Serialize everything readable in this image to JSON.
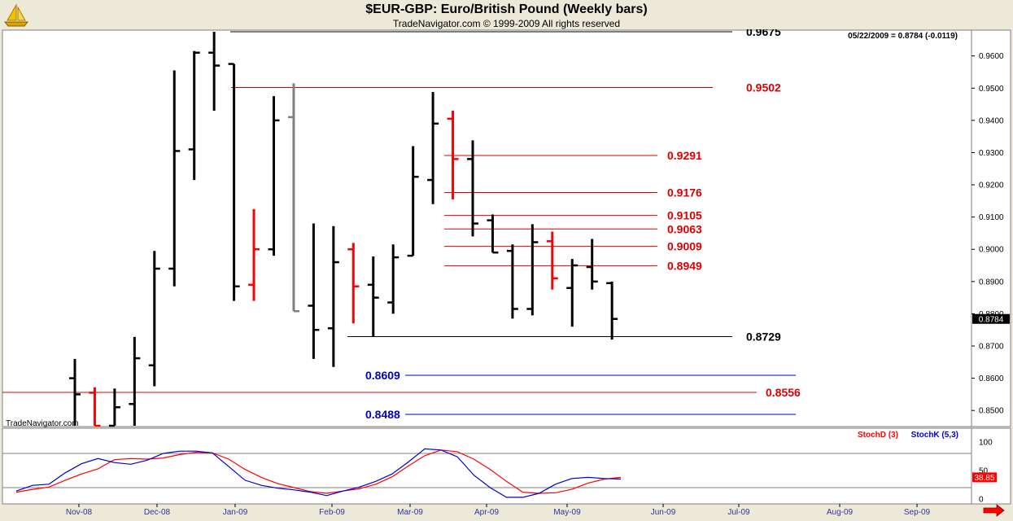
{
  "header": {
    "title": "$EUR-GBP:  Euro/British Pound  (Weekly bars)",
    "subtitle": "TradeNavigator.com © 1999-2009 All rights reserved",
    "last_quote": "05/22/2009 = 0.8784 (-0.0119)",
    "watermark": "TradeNavigator.com",
    "logo_icon": "trade-navigator-sailboat-icon"
  },
  "colors": {
    "background": "#ffffff",
    "frame": "#ece9d8",
    "up_bar": "#000000",
    "down_bar": "#ff0000",
    "neutral_bar": "#808080",
    "stoch_d": "#ff0000",
    "stoch_k": "#0000cc",
    "level_red": "#dd0000",
    "level_blue": "#0000cc",
    "level_black": "#000000"
  },
  "chart_data": [
    {
      "type": "ohlc",
      "title": "$EUR-GBP:  Euro/British Pound  (Weekly bars)",
      "ylim": [
        0.845,
        0.968
      ],
      "yticks": [
        "0.9600",
        "0.9500",
        "0.9400",
        "0.9300",
        "0.9200",
        "0.9100",
        "0.9000",
        "0.8900",
        "0.8800",
        "0.8700",
        "0.8600",
        "0.8500"
      ],
      "x_labels": [
        "Nov-08",
        "Dec-08",
        "Jan-09",
        "Feb-09",
        "Mar-09",
        "Apr-09",
        "May-09",
        "Jun-09",
        "Jul-09",
        "Aug-09",
        "Sep-09"
      ],
      "last_price_label": "0.8784",
      "bars": [
        {
          "week": 1,
          "o": 0.86,
          "h": 0.866,
          "l": 0.845,
          "c": 0.855,
          "color": "black"
        },
        {
          "week": 2,
          "o": 0.8555,
          "h": 0.8572,
          "l": 0.845,
          "c": 0.845,
          "color": "red"
        },
        {
          "week": 3,
          "o": 0.845,
          "h": 0.8568,
          "l": 0.845,
          "c": 0.851,
          "color": "black"
        },
        {
          "week": 4,
          "o": 0.852,
          "h": 0.8728,
          "l": 0.845,
          "c": 0.8662,
          "color": "black"
        },
        {
          "week": 5,
          "o": 0.864,
          "h": 0.8995,
          "l": 0.8575,
          "c": 0.894,
          "color": "black"
        },
        {
          "week": 6,
          "o": 0.894,
          "h": 0.9555,
          "l": 0.8885,
          "c": 0.9305,
          "color": "black"
        },
        {
          "week": 7,
          "o": 0.931,
          "h": 0.9615,
          "l": 0.9215,
          "c": 0.961,
          "color": "black"
        },
        {
          "week": 8,
          "o": 0.961,
          "h": 0.9675,
          "l": 0.943,
          "c": 0.957,
          "color": "black"
        },
        {
          "week": 9,
          "o": 0.9575,
          "h": 0.9575,
          "l": 0.884,
          "c": 0.8885,
          "color": "black"
        },
        {
          "week": 10,
          "o": 0.889,
          "h": 0.9125,
          "l": 0.884,
          "c": 0.9,
          "color": "red"
        },
        {
          "week": 11,
          "o": 0.9,
          "h": 0.9475,
          "l": 0.898,
          "c": 0.94,
          "color": "black"
        },
        {
          "week": 12,
          "o": 0.941,
          "h": 0.9515,
          "l": 0.8808,
          "c": 0.8808,
          "color": "gray"
        },
        {
          "week": 13,
          "o": 0.8825,
          "h": 0.908,
          "l": 0.866,
          "c": 0.875,
          "color": "black"
        },
        {
          "week": 14,
          "o": 0.8755,
          "h": 0.9072,
          "l": 0.8635,
          "c": 0.896,
          "color": "black"
        },
        {
          "week": 15,
          "o": 0.9,
          "h": 0.902,
          "l": 0.877,
          "c": 0.8885,
          "color": "red"
        },
        {
          "week": 16,
          "o": 0.889,
          "h": 0.8978,
          "l": 0.8729,
          "c": 0.885,
          "color": "black"
        },
        {
          "week": 17,
          "o": 0.8835,
          "h": 0.9015,
          "l": 0.88,
          "c": 0.8975,
          "color": "black"
        },
        {
          "week": 18,
          "o": 0.898,
          "h": 0.932,
          "l": 0.898,
          "c": 0.9225,
          "color": "black"
        },
        {
          "week": 19,
          "o": 0.9215,
          "h": 0.9488,
          "l": 0.914,
          "c": 0.939,
          "color": "black"
        },
        {
          "week": 20,
          "o": 0.9405,
          "h": 0.943,
          "l": 0.9155,
          "c": 0.928,
          "color": "red"
        },
        {
          "week": 21,
          "o": 0.928,
          "h": 0.9338,
          "l": 0.904,
          "c": 0.908,
          "color": "black"
        },
        {
          "week": 22,
          "o": 0.909,
          "h": 0.9108,
          "l": 0.899,
          "c": 0.899,
          "color": "black"
        },
        {
          "week": 23,
          "o": 0.8995,
          "h": 0.9015,
          "l": 0.8785,
          "c": 0.8815,
          "color": "black"
        },
        {
          "week": 24,
          "o": 0.8815,
          "h": 0.9078,
          "l": 0.8795,
          "c": 0.9022,
          "color": "black"
        },
        {
          "week": 25,
          "o": 0.9025,
          "h": 0.9055,
          "l": 0.8875,
          "c": 0.891,
          "color": "red"
        },
        {
          "week": 26,
          "o": 0.888,
          "h": 0.897,
          "l": 0.876,
          "c": 0.895,
          "color": "black"
        },
        {
          "week": 27,
          "o": 0.8945,
          "h": 0.9032,
          "l": 0.8875,
          "c": 0.89,
          "color": "black"
        },
        {
          "week": 28,
          "o": 0.8895,
          "h": 0.89,
          "l": 0.872,
          "c": 0.8784,
          "color": "black"
        }
      ],
      "levels": [
        {
          "value": 0.9675,
          "label": "0.9675",
          "color": "black"
        },
        {
          "value": 0.9502,
          "label": "0.9502",
          "color": "red"
        },
        {
          "value": 0.9291,
          "label": "0.9291",
          "color": "red"
        },
        {
          "value": 0.9176,
          "label": "0.9176",
          "color": "red"
        },
        {
          "value": 0.9105,
          "label": "0.9105",
          "color": "red"
        },
        {
          "value": 0.9063,
          "label": "0.9063",
          "color": "red"
        },
        {
          "value": 0.9009,
          "label": "0.9009",
          "color": "red"
        },
        {
          "value": 0.8949,
          "label": "0.8949",
          "color": "red"
        },
        {
          "value": 0.8729,
          "label": "0.8729",
          "color": "black"
        },
        {
          "value": 0.8609,
          "label": "0.8609",
          "color": "blue"
        },
        {
          "value": 0.8556,
          "label": "0.8556",
          "color": "red"
        },
        {
          "value": 0.8488,
          "label": "0.8488",
          "color": "blue"
        }
      ]
    },
    {
      "type": "line",
      "ylim": [
        0,
        100
      ],
      "yticks": [
        "100",
        "50",
        "0"
      ],
      "reference_lines": [
        80,
        20
      ],
      "last_value_label": "38.85",
      "legend_position": "top-right",
      "series": [
        {
          "name": "StochD (3)",
          "color": "red",
          "values": [
            12,
            17,
            21,
            33,
            44,
            53,
            69,
            71,
            70,
            72,
            78,
            82,
            81,
            70,
            52,
            38,
            27,
            20,
            13,
            10,
            14,
            18,
            26,
            39,
            58,
            76,
            86,
            83,
            70,
            52,
            31,
            12,
            10,
            11,
            17,
            28,
            35,
            38
          ]
        },
        {
          "name": "StochK (5,3)",
          "color": "blue",
          "values": [
            14,
            24,
            26,
            46,
            62,
            71,
            64,
            61,
            68,
            80,
            84,
            84,
            81,
            57,
            33,
            24,
            19,
            16,
            12,
            6,
            14,
            21,
            31,
            44,
            65,
            88,
            86,
            74,
            42,
            20,
            3,
            3,
            10,
            26,
            36,
            38,
            36,
            35
          ]
        }
      ]
    }
  ]
}
